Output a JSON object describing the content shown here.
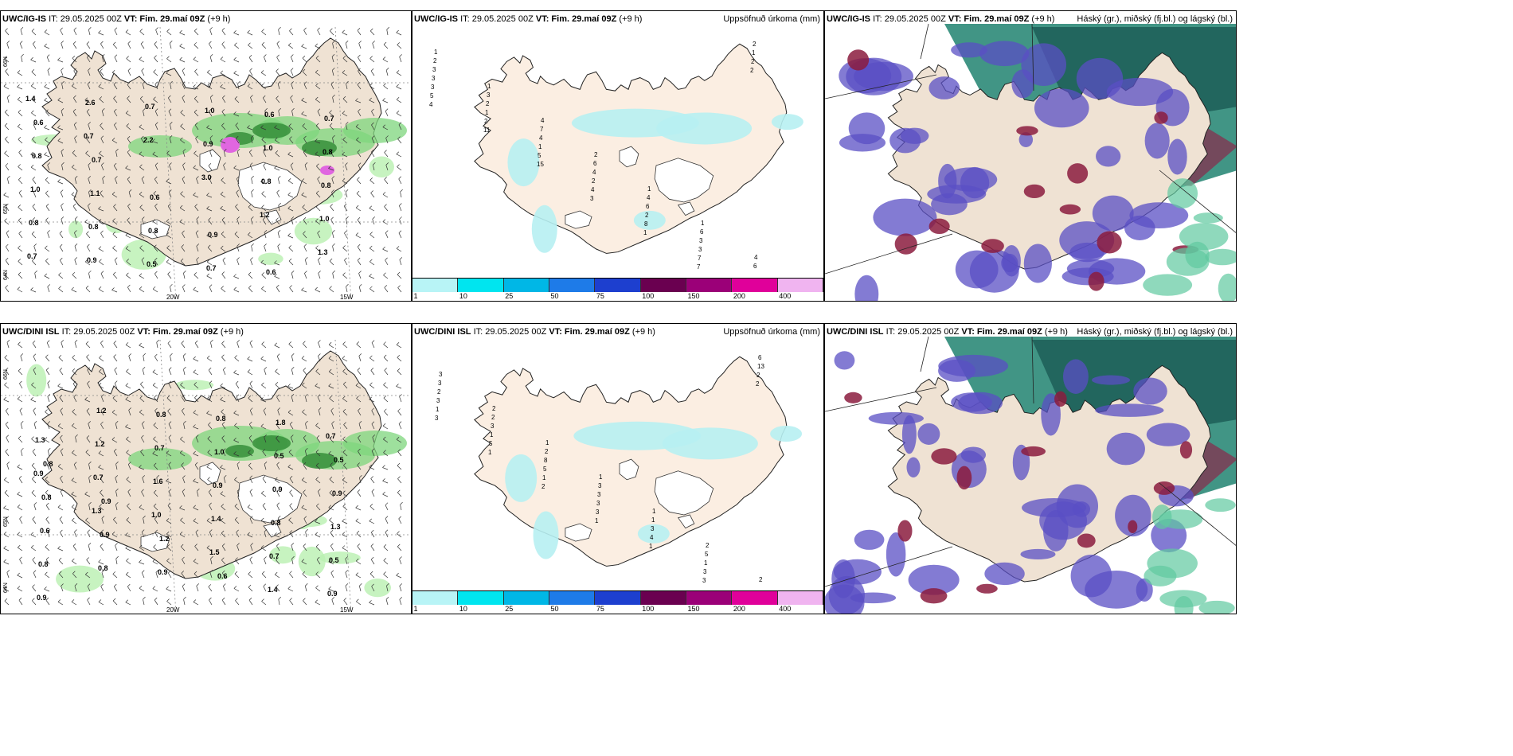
{
  "panels": [
    {
      "id": "p1",
      "model": "UWC/IG-IS",
      "it": "IT: 29.05.2025 00Z",
      "vt_label": "VT:",
      "vt": "Fim. 29.maí 09Z",
      "lead": "(+9 h)",
      "right_title": "",
      "type": "wind"
    },
    {
      "id": "p2",
      "model": "UWC/IG-IS",
      "it": "IT: 29.05.2025 00Z",
      "vt_label": "VT:",
      "vt": "Fim. 29.maí 09Z",
      "lead": "(+9 h)",
      "right_title": "Uppsöfnuð úrkoma (mm)",
      "type": "precip"
    },
    {
      "id": "p3",
      "model": "UWC/IG-IS",
      "it": "IT: 29.05.2025 00Z",
      "vt_label": "VT:",
      "vt": "Fim. 29.maí 09Z",
      "lead": "(+9 h)",
      "right_title": "Háský (gr.), miðský (fj.bl.) og lágský (bl.)",
      "type": "cloud"
    },
    {
      "id": "p4",
      "model": "UWC/DINI ISL",
      "it": "IT: 29.05.2025 00Z",
      "vt_label": "VT:",
      "vt": "Fim. 29.maí 09Z",
      "lead": "(+9 h)",
      "right_title": "",
      "type": "wind"
    },
    {
      "id": "p5",
      "model": "UWC/DINI ISL",
      "it": "IT: 29.05.2025 00Z",
      "vt_label": "VT:",
      "vt": "Fim. 29.maí 09Z",
      "lead": "(+9 h)",
      "right_title": "Uppsöfnuð úrkoma (mm)",
      "type": "precip"
    },
    {
      "id": "p6",
      "model": "UWC/DINI ISL",
      "it": "IT: 29.05.2025 00Z",
      "vt_label": "VT:",
      "vt": "Fim. 29.maí 09Z",
      "lead": "(+9 h)",
      "right_title": "Háský (gr.), miðský (fj.bl.) og lágský (bl.)",
      "type": "cloud"
    }
  ],
  "grid_labels": {
    "lon_20w": "20W",
    "lon_15w": "15W",
    "lat_66n": "66N",
    "lat_65n": "65N",
    "lat_64n": "64N"
  },
  "colorbar": {
    "colors": [
      "#b8f4f6",
      "#00e5ef",
      "#00b7e6",
      "#1e7be8",
      "#1d3fcf",
      "#6a0050",
      "#9b0078",
      "#e0009a",
      "#f0b4f0"
    ],
    "labels": [
      "1",
      "10",
      "25",
      "50",
      "75",
      "100",
      "150",
      "200",
      "400"
    ]
  },
  "wind_values_top": [
    "0.6",
    "0.7",
    "0.6",
    "0.9",
    "0.6",
    "0.7",
    "0.8",
    "1.1",
    "0.8",
    "0.7",
    "0.6",
    "0.8",
    "1.0",
    "0.8",
    "0.5",
    "1.0",
    "1.0",
    "0.8",
    "0.8",
    "0.9",
    "0.7",
    "0.9",
    "0.8",
    "1.0",
    "0.7",
    "2.6",
    "2.2",
    "3.0",
    "1.2",
    "1.3",
    "1.4",
    "0.7"
  ],
  "wind_values_bottom": [
    "0.8",
    "0.9",
    "1.2",
    "0.6",
    "1.8",
    "0.5",
    "0.8",
    "0.9",
    "0.9",
    "0.8",
    "0.5",
    "0.9",
    "0.6",
    "0.8",
    "0.8",
    "1.0",
    "0.9",
    "1.3",
    "0.8",
    "1.2",
    "0.7",
    "0.9",
    "0.8",
    "0.5",
    "0.9",
    "1.2",
    "1.6",
    "1.4",
    "0.7",
    "0.9",
    "1.3",
    "0.7",
    "1.0",
    "1.5",
    "1.4",
    "0.7",
    "0.9",
    "1.3"
  ],
  "precip_values_top": [
    "1",
    "1",
    "4",
    "2",
    "1",
    "1",
    "4",
    "2",
    "3",
    "7",
    "6",
    "4",
    "6",
    "6",
    "3",
    "2",
    "4",
    "4",
    "6",
    "3",
    "2",
    "3",
    "1",
    "1",
    "2",
    "2",
    "3",
    "1",
    "3",
    "2",
    "5",
    "4",
    "8",
    "7",
    "2",
    "5",
    "11",
    "15",
    "3",
    "1",
    "7",
    "2",
    "4"
  ],
  "precip_values_bottom": [
    "3",
    "2",
    "1",
    "1",
    "1",
    "2",
    "2",
    "3",
    "2",
    "2",
    "3",
    "1",
    "5",
    "6",
    "2",
    "3",
    "8",
    "3",
    "3",
    "1",
    "13",
    "3",
    "1",
    "5",
    "3",
    "4",
    "3",
    "2",
    "1",
    "5",
    "1",
    "3",
    "1",
    "3",
    "2",
    "3",
    "1",
    "2",
    "1"
  ]
}
